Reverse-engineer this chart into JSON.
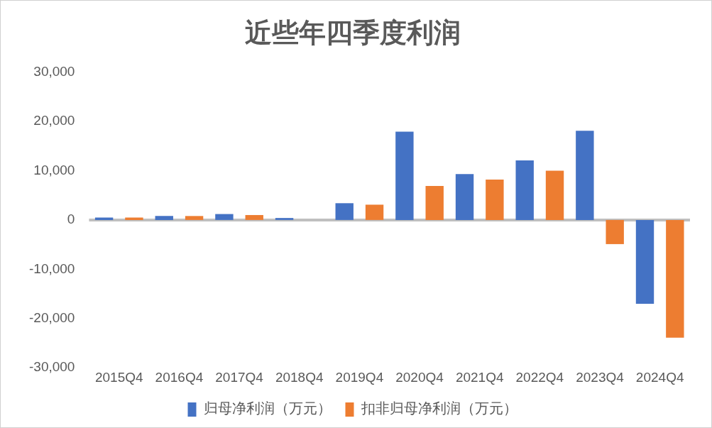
{
  "chart_data": {
    "type": "bar",
    "title": "近些年四季度利润",
    "categories": [
      "2015Q4",
      "2016Q4",
      "2017Q4",
      "2018Q4",
      "2019Q4",
      "2020Q4",
      "2021Q4",
      "2022Q4",
      "2023Q4",
      "2024Q4"
    ],
    "series": [
      {
        "name": "归母净利润（万元）",
        "color": "#4472c4",
        "values": [
          500,
          800,
          1200,
          400,
          3400,
          17900,
          9300,
          12100,
          18100,
          -17000
        ]
      },
      {
        "name": "扣非归母净利润（万元）",
        "color": "#ed7d31",
        "values": [
          500,
          800,
          1000,
          0,
          3100,
          6900,
          8200,
          10000,
          -4900,
          -23900
        ]
      }
    ],
    "ylim": [
      -30000,
      30000
    ],
    "yticks": [
      {
        "value": -30000,
        "label": "-30,000"
      },
      {
        "value": -20000,
        "label": "-20,000"
      },
      {
        "value": -10000,
        "label": "-10,000"
      },
      0,
      {
        "value": 10000,
        "label": "10,000"
      },
      {
        "value": 20000,
        "label": "20,000"
      },
      {
        "value": 30000,
        "label": "30,000"
      }
    ],
    "ref_lines": [
      {
        "axis": "y",
        "value": 0,
        "color": "#bfbfbf"
      }
    ],
    "legend": "bottom"
  }
}
